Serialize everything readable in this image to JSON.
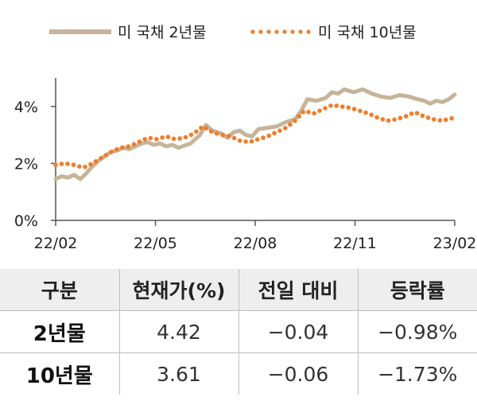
{
  "chart_data": {
    "type": "line",
    "x_ticks": [
      "22/02",
      "22/05",
      "22/08",
      "22/11",
      "23/02"
    ],
    "y_ticks": [
      "0%",
      "2%",
      "4%"
    ],
    "ylim": [
      0,
      5
    ],
    "legend_position": "top",
    "series": [
      {
        "name": "미 국채 2년물",
        "style": "solid",
        "color": "#c6b49a",
        "points": [
          [
            0,
            1.45
          ],
          [
            0.1,
            1.55
          ],
          [
            0.2,
            1.5
          ],
          [
            0.3,
            1.6
          ],
          [
            0.4,
            1.45
          ],
          [
            0.5,
            1.65
          ],
          [
            0.6,
            1.9
          ],
          [
            0.7,
            2.1
          ],
          [
            0.8,
            2.25
          ],
          [
            0.9,
            2.4
          ],
          [
            1.0,
            2.45
          ],
          [
            1.1,
            2.55
          ],
          [
            1.2,
            2.5
          ],
          [
            1.3,
            2.6
          ],
          [
            1.4,
            2.7
          ],
          [
            1.5,
            2.75
          ],
          [
            1.6,
            2.65
          ],
          [
            1.7,
            2.7
          ],
          [
            1.8,
            2.6
          ],
          [
            1.9,
            2.65
          ],
          [
            2.0,
            2.55
          ],
          [
            2.2,
            2.7
          ],
          [
            2.35,
            3.0
          ],
          [
            2.45,
            3.35
          ],
          [
            2.55,
            3.15
          ],
          [
            2.7,
            3.05
          ],
          [
            2.8,
            2.9
          ],
          [
            2.9,
            3.1
          ],
          [
            3.0,
            3.15
          ],
          [
            3.1,
            3.0
          ],
          [
            3.2,
            2.95
          ],
          [
            3.3,
            3.2
          ],
          [
            3.45,
            3.25
          ],
          [
            3.6,
            3.3
          ],
          [
            3.75,
            3.45
          ],
          [
            3.9,
            3.55
          ],
          [
            4.0,
            3.85
          ],
          [
            4.1,
            4.25
          ],
          [
            4.25,
            4.2
          ],
          [
            4.4,
            4.3
          ],
          [
            4.5,
            4.5
          ],
          [
            4.6,
            4.45
          ],
          [
            4.7,
            4.6
          ],
          [
            4.85,
            4.5
          ],
          [
            5.0,
            4.6
          ],
          [
            5.15,
            4.45
          ],
          [
            5.3,
            4.35
          ],
          [
            5.45,
            4.3
          ],
          [
            5.6,
            4.4
          ],
          [
            5.75,
            4.35
          ],
          [
            5.9,
            4.25
          ],
          [
            6.0,
            4.2
          ],
          [
            6.1,
            4.1
          ],
          [
            6.2,
            4.2
          ],
          [
            6.3,
            4.15
          ],
          [
            6.4,
            4.25
          ],
          [
            6.5,
            4.42
          ]
        ]
      },
      {
        "name": "미 국채 10년물",
        "style": "dotted",
        "color": "#f07d2a",
        "points": [
          [
            0,
            1.95
          ],
          [
            0.15,
            2.0
          ],
          [
            0.3,
            1.95
          ],
          [
            0.45,
            1.85
          ],
          [
            0.6,
            2.0
          ],
          [
            0.75,
            2.2
          ],
          [
            0.9,
            2.4
          ],
          [
            1.05,
            2.55
          ],
          [
            1.2,
            2.6
          ],
          [
            1.35,
            2.75
          ],
          [
            1.5,
            2.9
          ],
          [
            1.65,
            2.85
          ],
          [
            1.8,
            2.95
          ],
          [
            1.95,
            2.85
          ],
          [
            2.1,
            2.9
          ],
          [
            2.25,
            3.05
          ],
          [
            2.4,
            3.3
          ],
          [
            2.55,
            3.1
          ],
          [
            2.7,
            3.0
          ],
          [
            2.85,
            2.95
          ],
          [
            3.0,
            2.8
          ],
          [
            3.15,
            2.75
          ],
          [
            3.3,
            2.85
          ],
          [
            3.45,
            2.95
          ],
          [
            3.6,
            3.1
          ],
          [
            3.75,
            3.25
          ],
          [
            3.9,
            3.5
          ],
          [
            4.05,
            3.85
          ],
          [
            4.2,
            3.75
          ],
          [
            4.35,
            3.9
          ],
          [
            4.5,
            4.05
          ],
          [
            4.65,
            4.0
          ],
          [
            4.8,
            3.95
          ],
          [
            4.95,
            3.85
          ],
          [
            5.1,
            3.75
          ],
          [
            5.25,
            3.6
          ],
          [
            5.4,
            3.5
          ],
          [
            5.55,
            3.55
          ],
          [
            5.7,
            3.65
          ],
          [
            5.85,
            3.8
          ],
          [
            6.0,
            3.65
          ],
          [
            6.15,
            3.55
          ],
          [
            6.3,
            3.5
          ],
          [
            6.5,
            3.61
          ]
        ]
      }
    ]
  },
  "table": {
    "headers": [
      "구분",
      "현재가(%)",
      "전일 대비",
      "등락률"
    ],
    "rows": [
      [
        "2년물",
        "4.42",
        "−0.04",
        "−0.98%"
      ],
      [
        "10년물",
        "3.61",
        "−0.06",
        "−1.73%"
      ]
    ]
  }
}
